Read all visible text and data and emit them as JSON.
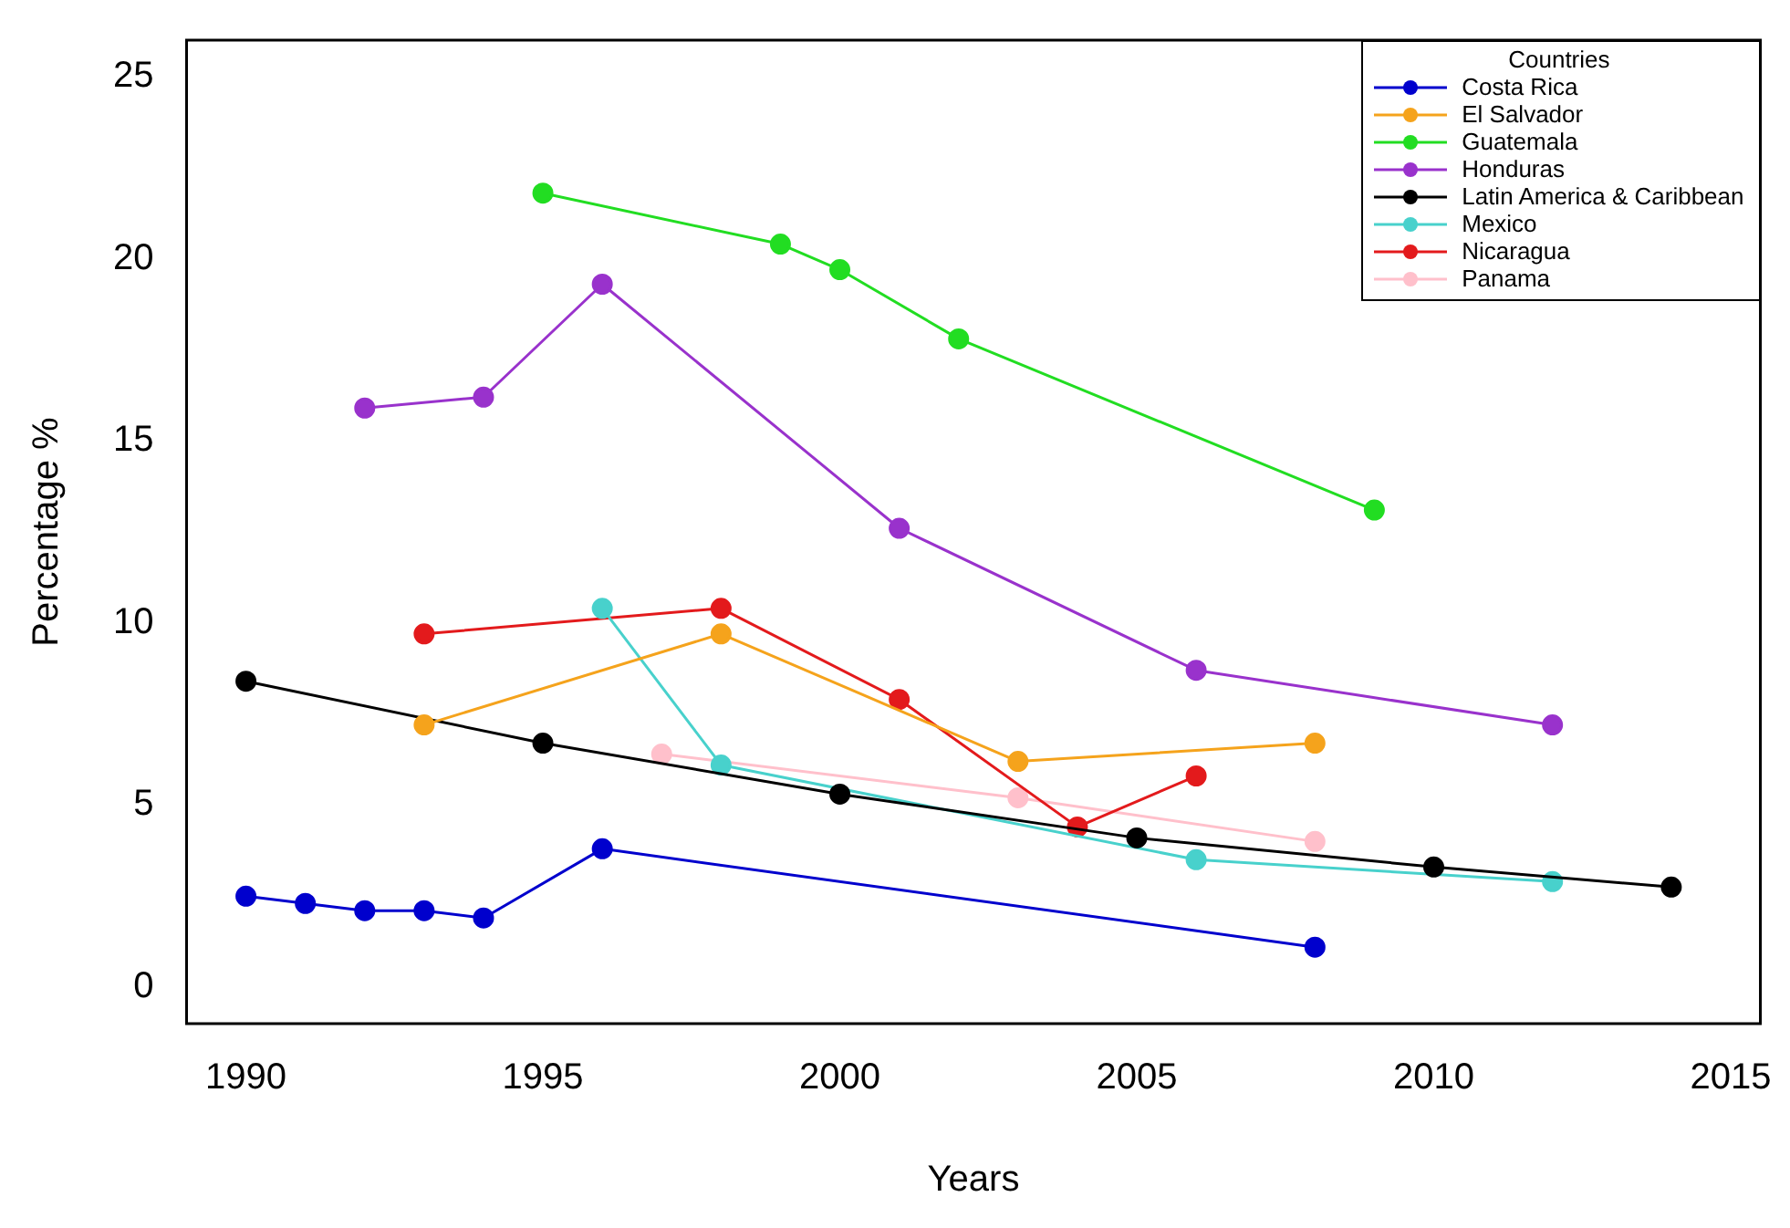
{
  "chart_data": {
    "type": "line",
    "xlabel": "Years",
    "ylabel": "Percentage %",
    "legend_title": "Countries",
    "legend": "top right",
    "marker": "circle",
    "line_style": "solid",
    "grid": false,
    "xlim": [
      1989,
      2015.5
    ],
    "xticks": [
      1990,
      1995,
      2000,
      2005,
      2010,
      2015
    ],
    "ylim": [
      -1,
      26
    ],
    "yticks": [
      0,
      5,
      10,
      15,
      20,
      25
    ],
    "series": [
      {
        "name": "Costa Rica",
        "color": "#0000cd",
        "x": [
          1990,
          1991,
          1992,
          1993,
          1994,
          1996,
          2008
        ],
        "values": [
          2.5,
          2.3,
          2.1,
          2.1,
          1.9,
          3.8,
          1.1
        ]
      },
      {
        "name": "El Salvador",
        "color": "#f5a31c",
        "x": [
          1993,
          1998,
          2003,
          2008
        ],
        "values": [
          7.2,
          9.7,
          6.2,
          6.7
        ]
      },
      {
        "name": "Guatemala",
        "color": "#22dd22",
        "x": [
          1995,
          1999,
          2000,
          2002,
          2009
        ],
        "values": [
          21.8,
          20.4,
          19.7,
          17.8,
          13.1
        ]
      },
      {
        "name": "Honduras",
        "color": "#9932cc",
        "x": [
          1992,
          1994,
          1996,
          2001,
          2006,
          2012
        ],
        "values": [
          15.9,
          16.2,
          19.3,
          12.6,
          8.7,
          7.2
        ]
      },
      {
        "name": "Latin America & Caribbean",
        "color": "#000000",
        "x": [
          1990,
          1995,
          2000,
          2005,
          2010,
          2014
        ],
        "values": [
          8.4,
          6.7,
          5.3,
          4.1,
          3.3,
          2.75
        ]
      },
      {
        "name": "Mexico",
        "color": "#48d1cc",
        "x": [
          1996,
          1998,
          2006,
          2012
        ],
        "values": [
          10.4,
          6.1,
          3.5,
          2.9
        ]
      },
      {
        "name": "Nicaragua",
        "color": "#e31a1c",
        "x": [
          1993,
          1998,
          2001,
          2004,
          2006
        ],
        "values": [
          9.7,
          10.4,
          7.9,
          4.4,
          5.8
        ]
      },
      {
        "name": "Panama",
        "color": "#ffc0cb",
        "x": [
          1997,
          2003,
          2008
        ],
        "values": [
          6.4,
          5.2,
          4.0
        ]
      }
    ]
  }
}
